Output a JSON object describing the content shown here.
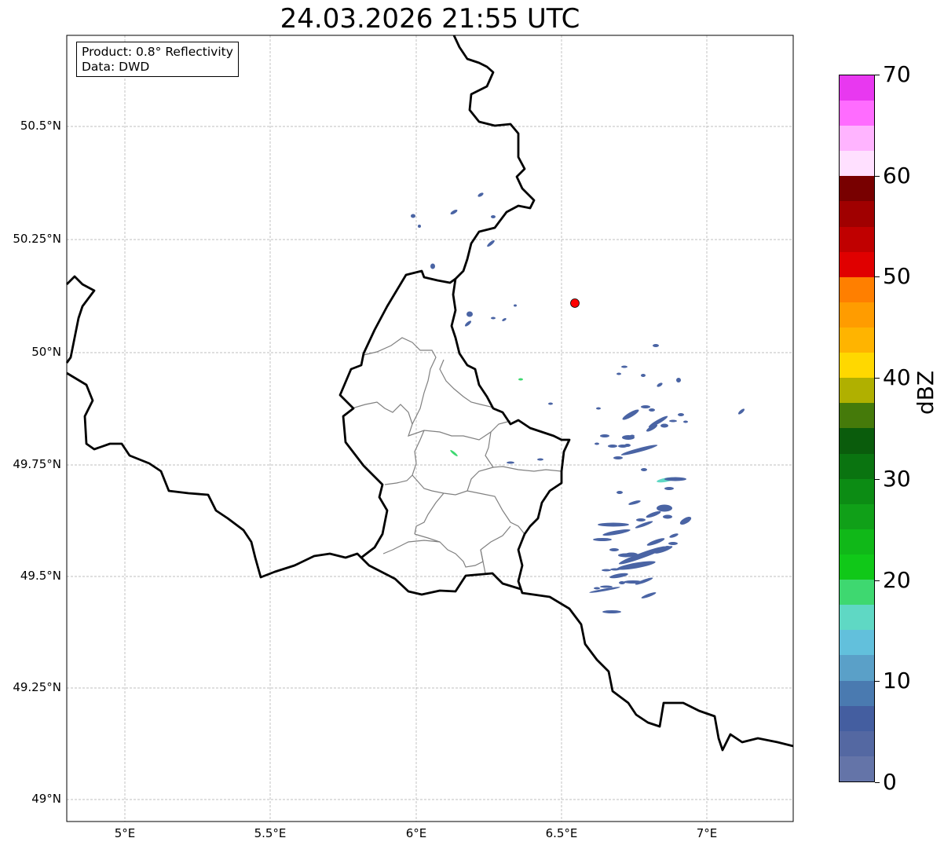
{
  "title": "24.03.2026 21:55 UTC",
  "info_box": {
    "line1": "Product: 0.8° Reflectivity",
    "line2": "Data: DWD"
  },
  "map": {
    "lat_ticks": [
      "50.5°N",
      "50.25°N",
      "50°N",
      "49.75°N",
      "49.5°N",
      "49.25°N",
      "49°N"
    ],
    "lon_ticks": [
      "5°E",
      "5.5°E",
      "6°E",
      "6.5°E",
      "7°E"
    ],
    "marker_color": "#ff0000",
    "echo_color": "#4a64a4"
  },
  "colorbar": {
    "label": "dBZ",
    "ticks": [
      "0",
      "10",
      "20",
      "30",
      "40",
      "50",
      "60",
      "70"
    ],
    "colors": [
      "#6474a8",
      "#5468a2",
      "#445ea0",
      "#4a7ab0",
      "#5aa0c8",
      "#62c0dc",
      "#5fd8c4",
      "#3ed870",
      "#10c818",
      "#10b818",
      "#10a018",
      "#0c8c14",
      "#0a7410",
      "#0a5c0c",
      "#457a0a",
      "#b0b000",
      "#ffd800",
      "#ffb400",
      "#ff9c00",
      "#ff7f00",
      "#e00000",
      "#c00000",
      "#a00000",
      "#780000",
      "#ffe0ff",
      "#ffb4ff",
      "#ff6cff",
      "#e838f0"
    ]
  }
}
